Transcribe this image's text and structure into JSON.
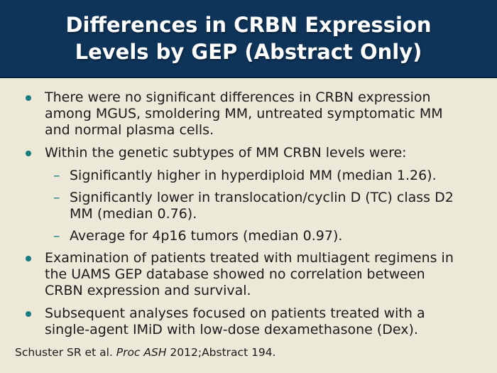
{
  "slide": {
    "title_lines": [
      "Differences in CRBN Expression",
      "Levels by GEP (Abstract Only)"
    ],
    "bullets": [
      {
        "level": 1,
        "lines": [
          "There were no significant differences in CRBN expression",
          "among MGUS, smoldering MM, untreated symptomatic MM",
          "and normal plasma cells."
        ]
      },
      {
        "level": 1,
        "lines": [
          "Within the genetic subtypes of MM CRBN levels were:"
        ]
      },
      {
        "level": 2,
        "lines": [
          "Significantly higher in hyperdiploid MM (median 1.26)."
        ]
      },
      {
        "level": 2,
        "lines": [
          "Significantly lower in translocation/cyclin D (TC) class D2",
          "MM (median 0.76)."
        ]
      },
      {
        "level": 2,
        "lines": [
          "Average for 4p16 tumors (median 0.97)."
        ]
      },
      {
        "level": 1,
        "lines": [
          "Examination of patients treated with multiagent regimens in",
          "the UAMS GEP database showed no correlation between",
          "CRBN expression and survival."
        ]
      },
      {
        "level": 1,
        "lines": [
          "Subsequent analyses focused on patients treated with a",
          "single-agent IMiD with low-dose dexamethasone (Dex)."
        ]
      }
    ],
    "citation": {
      "prefix": "Schuster SR et al. ",
      "italic": "Proc ASH",
      "suffix": " 2012;Abstract 194."
    },
    "icons": {
      "sub_dash": "–"
    },
    "colors": {
      "header_navy": "#0E3459",
      "body_cream": "#EDE9D8",
      "bullet_teal": "#177C7B",
      "title_text": "#FFFFFF",
      "body_text": "#1B1B1B"
    }
  }
}
